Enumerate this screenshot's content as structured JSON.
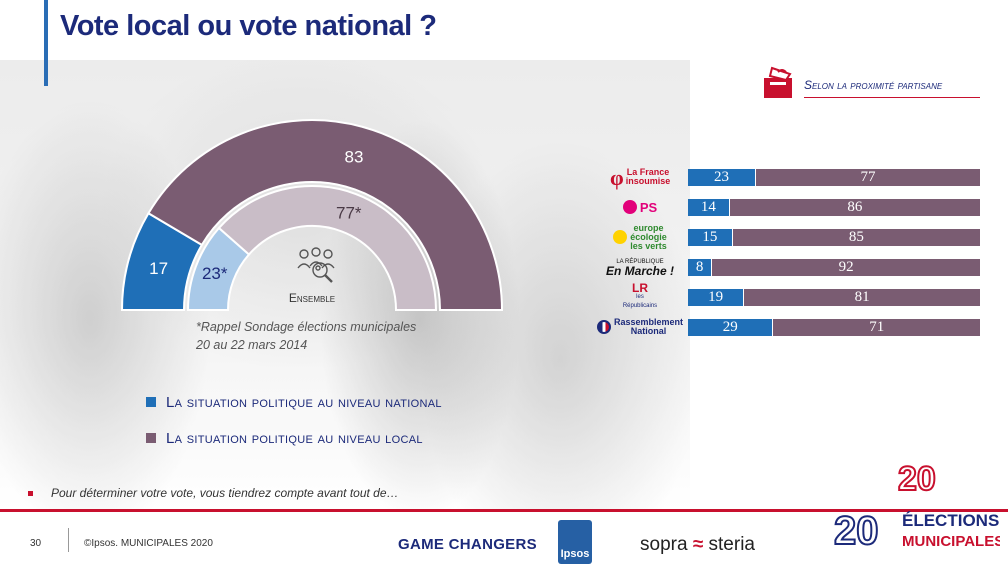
{
  "title": "Vote local ou vote national ?",
  "subtitle": "Selon la proximité partisane",
  "colors": {
    "national": "#1f6fb7",
    "local": "#7a5c72",
    "national_2014": "#a9c9e8",
    "local_2014": "#c9bdc7"
  },
  "chart_data": [
    {
      "type": "pie",
      "style": "half-donut",
      "series": [
        {
          "name": "Ensemble",
          "values": [
            17,
            83
          ]
        },
        {
          "name": "Rappel 2014",
          "values": [
            23,
            77
          ],
          "labels": [
            "23*",
            "77*"
          ]
        }
      ],
      "categories": [
        "La situation politique au niveau national",
        "La situation politique au niveau local"
      ],
      "center_label": "Ensemble",
      "note": "*Rappel Sondage élections municipales",
      "note2": "20 au 22 mars 2014"
    },
    {
      "type": "bar",
      "stacked": true,
      "orientation": "horizontal",
      "categories": [
        "La France insoumise",
        "PS",
        "Europe Écologie les Verts",
        "La République En Marche !",
        "Les Républicains",
        "Rassemblement National"
      ],
      "series": [
        {
          "name": "La situation politique au niveau national",
          "values": [
            23,
            14,
            15,
            8,
            19,
            29
          ]
        },
        {
          "name": "La situation politique au niveau local",
          "values": [
            77,
            86,
            85,
            92,
            81,
            71
          ]
        }
      ]
    }
  ],
  "logos": {
    "lfi": [
      "La France",
      "insoumise"
    ],
    "ps": "PS",
    "eelv": [
      "europe",
      "écologie",
      "les verts"
    ],
    "lrem": [
      "LA RÉPUBLIQUE",
      "En Marche !"
    ],
    "lr": [
      "LR",
      "les",
      "Républicains"
    ],
    "rn": [
      "Rassemblement",
      "National"
    ]
  },
  "legend": [
    {
      "label": "La situation politique au niveau national",
      "color": "#1f6fb7"
    },
    {
      "label": "La situation politique au niveau local",
      "color": "#7a5c72"
    }
  ],
  "question": "Pour déterminer votre vote, vous tiendrez compte avant tout de…",
  "footer": {
    "page": "30",
    "copyright": "©Ipsos.  MUNICIPALES 2020",
    "game_changers": "GAME CHANGERS",
    "ipsos": "Ipsos",
    "sopra_left": "sopra",
    "sopra_right": "steria",
    "elections_year_a": "20",
    "elections_year_b": "20",
    "elections": "ÉLECTIONS",
    "municipales": "MUNICIPALES"
  }
}
